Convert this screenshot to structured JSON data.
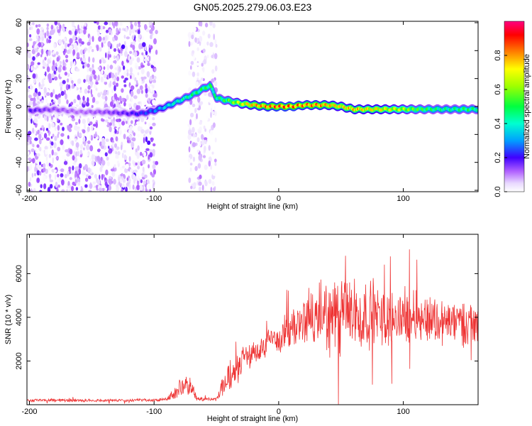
{
  "title": "GN05.2025.279.06.03.E23",
  "chart_data": [
    {
      "type": "heatmap",
      "title": "GN05.2025.279.06.03.E23",
      "xlabel": "Height of straight line (km)",
      "ylabel": "Frequency (Hz)",
      "xlim": [
        -202,
        160
      ],
      "ylim": [
        -61,
        61
      ],
      "x_ticks": [
        -200,
        -100,
        0,
        100
      ],
      "x_tick_labels": [
        "-200",
        "-100",
        "0",
        "100"
      ],
      "y_ticks": [
        -60,
        -40,
        -20,
        0,
        20,
        40,
        60
      ],
      "y_tick_labels": [
        "-60",
        "-40",
        "-20",
        "0",
        "20",
        "40",
        "60"
      ],
      "colorbar": {
        "label": "Normalized spectral amplitude",
        "range": [
          0,
          1
        ],
        "ticks": [
          0.0,
          0.2,
          0.4,
          0.6,
          0.8
        ],
        "tick_labels": [
          "0.0",
          "0.2",
          "0.4",
          "0.6",
          "0.8"
        ]
      },
      "ridge": {
        "x": [
          -200,
          -180,
          -160,
          -140,
          -120,
          -110,
          -100,
          -90,
          -80,
          -70,
          -60,
          -55,
          -50,
          -40,
          -30,
          -20,
          -10,
          0,
          10,
          20,
          30,
          40,
          50,
          60,
          70,
          80,
          90,
          100,
          110,
          120,
          130,
          140,
          150,
          160
        ],
        "freq": [
          -3,
          -2,
          -4,
          -4,
          -5,
          -5,
          -3,
          0,
          4,
          8,
          13,
          15,
          6,
          4,
          2,
          1,
          0,
          0,
          0,
          1,
          1,
          1,
          0,
          -2,
          -2,
          -2,
          -2,
          -2,
          -2,
          -2,
          -2,
          -2,
          -2,
          -2
        ],
        "amplitude": [
          0.2,
          0.15,
          0.12,
          0.15,
          0.2,
          0.25,
          0.3,
          0.4,
          0.45,
          0.5,
          0.55,
          0.55,
          0.5,
          0.6,
          0.75,
          0.85,
          0.9,
          0.95,
          0.95,
          0.9,
          0.9,
          0.85,
          0.8,
          0.85,
          0.8,
          0.8,
          0.75,
          0.7,
          0.6,
          0.55,
          0.5,
          0.5,
          0.55,
          0.5
        ]
      },
      "noise_regions": [
        {
          "x_range": [
            -202,
            -98
          ],
          "freq_range": [
            -61,
            61
          ],
          "max_amplitude": 0.2
        },
        {
          "x_range": [
            -72,
            -50
          ],
          "freq_range": [
            -61,
            61
          ],
          "max_amplitude": 0.12
        }
      ]
    },
    {
      "type": "line",
      "xlabel": "Height of straight line (km)",
      "ylabel": "SNR (10 * v/v)",
      "xlim": [
        -202,
        160
      ],
      "ylim": [
        0,
        7800
      ],
      "x_ticks": [
        -200,
        -100,
        0,
        100
      ],
      "x_tick_labels": [
        "-200",
        "-100",
        "0",
        "100"
      ],
      "y_ticks": [
        2000,
        4000,
        6000
      ],
      "y_tick_labels": [
        "2000",
        "4000",
        "6000"
      ],
      "series": [
        {
          "name": "SNR",
          "color": "#ee3333",
          "x": [
            -200,
            -180,
            -160,
            -140,
            -120,
            -100,
            -90,
            -85,
            -80,
            -75,
            -70,
            -65,
            -60,
            -55,
            -50,
            -45,
            -40,
            -35,
            -30,
            -25,
            -20,
            -15,
            -10,
            -5,
            0,
            5,
            10,
            15,
            20,
            25,
            30,
            35,
            40,
            45,
            50,
            55,
            60,
            65,
            70,
            75,
            80,
            85,
            90,
            95,
            100,
            105,
            110,
            115,
            120,
            125,
            130,
            135,
            140,
            145,
            150,
            155,
            160
          ],
          "mean": [
            200,
            200,
            200,
            200,
            200,
            200,
            250,
            500,
            700,
            800,
            700,
            300,
            250,
            250,
            250,
            800,
            1200,
            1500,
            1900,
            2200,
            2400,
            2500,
            2700,
            3000,
            3000,
            3300,
            3400,
            3600,
            3800,
            4000,
            3800,
            4200,
            4000,
            4000,
            3900,
            4300,
            4000,
            3800,
            4200,
            4000,
            4100,
            3900,
            4000,
            3900,
            4100,
            4000,
            4200,
            3900,
            4000,
            3900,
            3800,
            3800,
            3700,
            3800,
            3800,
            3700,
            3600
          ],
          "spread": [
            80,
            80,
            80,
            80,
            80,
            80,
            120,
            300,
            500,
            600,
            500,
            150,
            100,
            100,
            100,
            600,
            900,
            800,
            700,
            700,
            700,
            700,
            800,
            900,
            900,
            1000,
            1000,
            1100,
            1300,
            1500,
            1600,
            1800,
            2000,
            2200,
            2300,
            2200,
            2000,
            1900,
            1800,
            1700,
            1600,
            1500,
            1500,
            1400,
            1400,
            1400,
            1400,
            1300,
            1300,
            1300,
            1300,
            1200,
            1200,
            1200,
            1200,
            1200,
            1200
          ]
        }
      ]
    }
  ]
}
